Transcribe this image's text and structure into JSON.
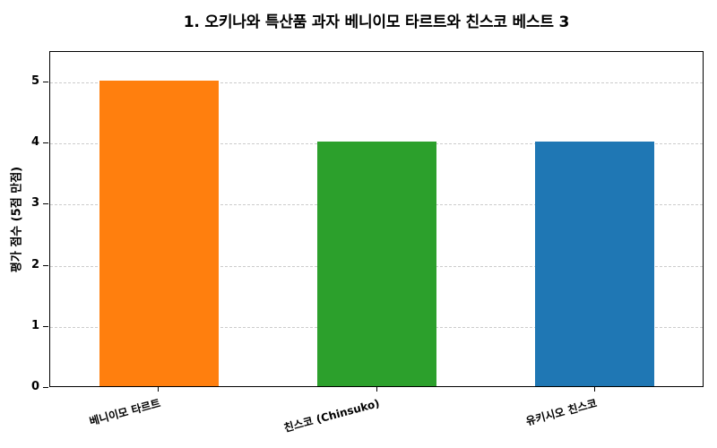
{
  "chart_data": {
    "type": "bar",
    "title": "1. 오키나와 특산품 과자 베니이모 타르트와 친스코 베스트 3",
    "xlabel": "",
    "ylabel": "평가 점수 (5점 만점)",
    "categories": [
      "베니이모 타르트",
      "친스코 (Chinsuko)",
      "유키시오 친스코"
    ],
    "values": [
      5,
      4,
      4
    ],
    "colors": [
      "#ff7f0e",
      "#2ca02c",
      "#1f77b4"
    ],
    "ylim": [
      0,
      5.5
    ],
    "yticks": [
      "0",
      "1",
      "2",
      "3",
      "4",
      "5"
    ],
    "grid": {
      "axis": "y",
      "style": "dashed",
      "color": "#cccccc"
    },
    "legend": null,
    "xtick_rotation": -15
  }
}
